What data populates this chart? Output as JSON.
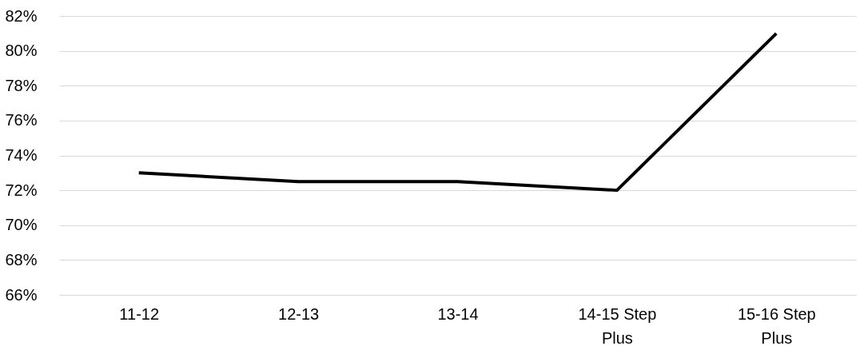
{
  "chart_data": {
    "type": "line",
    "categories": [
      "11-12",
      "12-13",
      "13-14",
      "14-15 Step Plus",
      "15-16 Step Plus"
    ],
    "series": [
      {
        "color": "#000000",
        "values": [
          73.0,
          72.5,
          72.5,
          72.0,
          81.0
        ]
      }
    ],
    "ylim": [
      66,
      82
    ],
    "yticks": [
      {
        "value": 66,
        "label": "66%"
      },
      {
        "value": 68,
        "label": "68%"
      },
      {
        "value": 70,
        "label": "70%"
      },
      {
        "value": 72,
        "label": "72%"
      },
      {
        "value": 74,
        "label": "74%"
      },
      {
        "value": 76,
        "label": "76%"
      },
      {
        "value": 78,
        "label": "78%"
      },
      {
        "value": 80,
        "label": "80%"
      },
      {
        "value": 82,
        "label": "82%"
      }
    ],
    "grid": "y",
    "legend": false,
    "marker": "none",
    "line_style": "solid"
  }
}
